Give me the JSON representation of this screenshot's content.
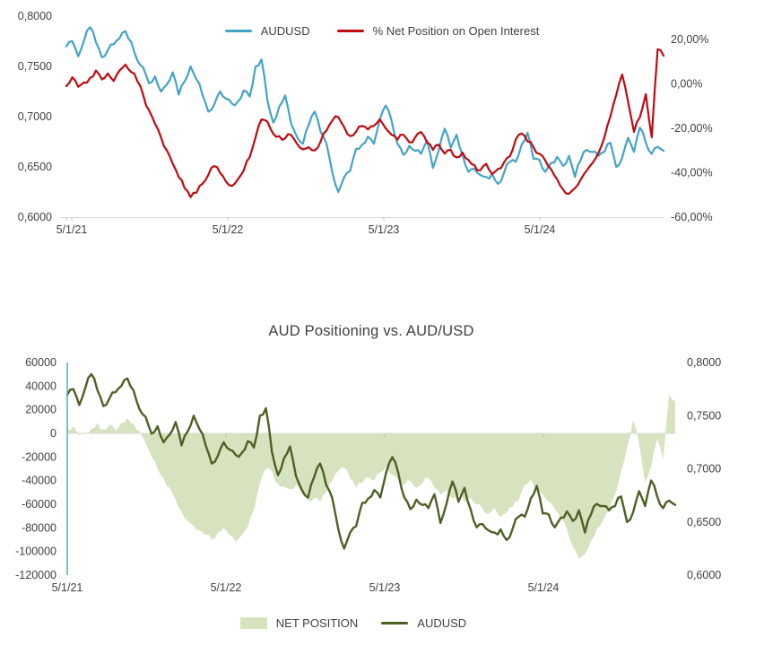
{
  "page": {
    "background": "#FFFFFF",
    "text_color": "#404040"
  },
  "top_chart": {
    "legend": [
      {
        "label": "AUDUSD",
        "color": "#44A3C6",
        "swatch": "line"
      },
      {
        "label": "% Net Position on Open Interest",
        "color": "#C00A12",
        "swatch": "line"
      }
    ]
  },
  "bottom_chart": {
    "title": "AUD Positioning vs. AUD/USD",
    "legend": [
      {
        "label": "NET POSITION",
        "color": "#D7E2BE",
        "swatch": "area"
      },
      {
        "label": "AUDUSD",
        "color": "#4E6024",
        "swatch": "line"
      }
    ]
  },
  "chart_data": [
    {
      "type": "line",
      "title": "",
      "x_tick_labels": [
        "5/1/21",
        "5/1/22",
        "5/1/23",
        "5/1/24"
      ],
      "x_span_years": 3.83,
      "grid": false,
      "legend_position": "top",
      "y_left": {
        "min": 0.6,
        "max": 0.8,
        "tick_values": [
          0.8,
          0.75,
          0.7,
          0.65,
          0.6
        ],
        "tick_labels": [
          "0,8000",
          "0,7500",
          "0,7000",
          "0,6500",
          "0,6000"
        ]
      },
      "y_right": {
        "min": -60,
        "max": 30.5,
        "tick_values": [
          20,
          0,
          -20,
          -40,
          -60
        ],
        "tick_labels": [
          "20,00%",
          "0,00%",
          "-20,00%",
          "-40,00%",
          "-60,00%"
        ]
      },
      "series": [
        {
          "name": "AUDUSD",
          "type": "line",
          "axis": "left",
          "color": "#44A3C6",
          "values": [
            0.77,
            0.775,
            0.76,
            0.776,
            0.789,
            0.774,
            0.759,
            0.766,
            0.772,
            0.778,
            0.785,
            0.774,
            0.756,
            0.749,
            0.733,
            0.74,
            0.725,
            0.732,
            0.744,
            0.722,
            0.735,
            0.75,
            0.737,
            0.722,
            0.705,
            0.712,
            0.725,
            0.718,
            0.713,
            0.715,
            0.726,
            0.72,
            0.75,
            0.757,
            0.716,
            0.694,
            0.71,
            0.721,
            0.693,
            0.68,
            0.673,
            0.692,
            0.705,
            0.685,
            0.673,
            0.644,
            0.625,
            0.64,
            0.646,
            0.668,
            0.672,
            0.68,
            0.673,
            0.697,
            0.711,
            0.696,
            0.673,
            0.662,
            0.671,
            0.666,
            0.663,
            0.676,
            0.649,
            0.667,
            0.688,
            0.669,
            0.682,
            0.662,
            0.645,
            0.648,
            0.642,
            0.64,
            0.643,
            0.633,
            0.644,
            0.655,
            0.655,
            0.672,
            0.684,
            0.658,
            0.657,
            0.645,
            0.654,
            0.66,
            0.651,
            0.661,
            0.64,
            0.657,
            0.667,
            0.665,
            0.661,
            0.665,
            0.674,
            0.65,
            0.659,
            0.679,
            0.665,
            0.689,
            0.674,
            0.663,
            0.67,
            0.666
          ]
        },
        {
          "name": "% Net Position on Open Interest",
          "type": "line",
          "axis": "right",
          "color": "#C00A12",
          "values": [
            -1.0,
            3.0,
            -1.3,
            0.7,
            2.7,
            6.0,
            2.0,
            4.7,
            1.3,
            6.0,
            8.7,
            5.3,
            1.3,
            -5.0,
            -12.0,
            -18.0,
            -24.0,
            -30.0,
            -36.0,
            -42.0,
            -47.0,
            -51.0,
            -49.0,
            -45.0,
            -41.0,
            -37.0,
            -40.0,
            -44.0,
            -46.0,
            -43.0,
            -39.0,
            -33.0,
            -24.0,
            -16.0,
            -17.0,
            -22.5,
            -23.5,
            -24.5,
            -23.0,
            -27.0,
            -29.5,
            -28.5,
            -30.0,
            -26.0,
            -21.0,
            -16.5,
            -15.0,
            -19.5,
            -23.5,
            -21.5,
            -19.0,
            -20.5,
            -18.9,
            -16.0,
            -20.0,
            -22.9,
            -25.1,
            -22.9,
            -26.3,
            -24.0,
            -21.7,
            -26.3,
            -29.7,
            -27.4,
            -31.4,
            -29.7,
            -33.1,
            -30.9,
            -34.3,
            -36.6,
            -38.9,
            -36.0,
            -40.6,
            -38.3,
            -35.4,
            -32.6,
            -25.1,
            -22.3,
            -26.0,
            -28.5,
            -31.5,
            -34.5,
            -38.5,
            -43.0,
            -47.5,
            -49.5,
            -47.0,
            -43.0,
            -39.0,
            -35.5,
            -31.0,
            -24.0,
            -14.7,
            -5.0,
            4.2,
            -8.0,
            -21.6,
            -15.0,
            -4.6,
            -24.0,
            15.6,
            12.7
          ]
        }
      ]
    },
    {
      "type": "area+line",
      "title": "AUD Positioning vs. AUD/USD",
      "x_tick_labels": [
        "5/1/21",
        "5/1/22",
        "5/1/23",
        "5/1/24"
      ],
      "x_span_years": 3.83,
      "grid": "zero-line-only",
      "legend_position": "bottom",
      "y_left": {
        "min": -120000,
        "max": 60000,
        "tick_values": [
          60000,
          40000,
          20000,
          0,
          -20000,
          -40000,
          -60000,
          -80000,
          -100000,
          -120000
        ],
        "tick_labels": [
          "60000",
          "40000",
          "20000",
          "0",
          "-20000",
          "-40000",
          "-60000",
          "-80000",
          "-100000",
          "-120000"
        ]
      },
      "y_right": {
        "min": 0.6,
        "max": 0.8,
        "tick_values": [
          0.8,
          0.75,
          0.7,
          0.65,
          0.6
        ],
        "tick_labels": [
          "0,8000",
          "0,7500",
          "0,7000",
          "0,6500",
          "0,6000"
        ]
      },
      "series": [
        {
          "name": "NET POSITION",
          "type": "area",
          "axis": "left",
          "color": "#D7E2BE",
          "values": [
            3000,
            6000,
            -2000,
            1000,
            4000,
            9000,
            3000,
            7000,
            2000,
            9000,
            13000,
            8000,
            2000,
            -8000,
            -20000,
            -30000,
            -38000,
            -46000,
            -56000,
            -66000,
            -74000,
            -78000,
            -82000,
            -86000,
            -90000,
            -84000,
            -80000,
            -86000,
            -92000,
            -86000,
            -79000,
            -65000,
            -42000,
            -30000,
            -32000,
            -43000,
            -45000,
            -47000,
            -44000,
            -52000,
            -57000,
            -55000,
            -58000,
            -50000,
            -40000,
            -32000,
            -29000,
            -38000,
            -46000,
            -42000,
            -37000,
            -40000,
            -33000,
            -28000,
            -35000,
            -40000,
            -44000,
            -40000,
            -46000,
            -42000,
            -38000,
            -46000,
            -52000,
            -48000,
            -55000,
            -52000,
            -58000,
            -54000,
            -60000,
            -64000,
            -68000,
            -63000,
            -71000,
            -67000,
            -62000,
            -57000,
            -44000,
            -39000,
            -48000,
            -52000,
            -58000,
            -64000,
            -72000,
            -81000,
            -96000,
            -106000,
            -102000,
            -91000,
            -81000,
            -74000,
            -66000,
            -52000,
            -32000,
            -12000,
            11000,
            -8000,
            -41000,
            -28000,
            -5000,
            -22000,
            33000,
            27000
          ]
        },
        {
          "name": "AUDUSD",
          "type": "line",
          "axis": "right",
          "color": "#4E6024",
          "values": [
            0.77,
            0.775,
            0.76,
            0.776,
            0.789,
            0.774,
            0.759,
            0.766,
            0.772,
            0.778,
            0.785,
            0.774,
            0.756,
            0.749,
            0.733,
            0.74,
            0.725,
            0.732,
            0.744,
            0.722,
            0.735,
            0.75,
            0.737,
            0.722,
            0.705,
            0.712,
            0.725,
            0.718,
            0.713,
            0.715,
            0.726,
            0.72,
            0.75,
            0.757,
            0.716,
            0.694,
            0.71,
            0.721,
            0.693,
            0.68,
            0.673,
            0.692,
            0.705,
            0.685,
            0.673,
            0.644,
            0.625,
            0.64,
            0.646,
            0.668,
            0.672,
            0.68,
            0.673,
            0.697,
            0.711,
            0.696,
            0.673,
            0.662,
            0.671,
            0.666,
            0.663,
            0.676,
            0.649,
            0.667,
            0.688,
            0.669,
            0.682,
            0.662,
            0.645,
            0.648,
            0.642,
            0.64,
            0.643,
            0.633,
            0.644,
            0.655,
            0.655,
            0.672,
            0.684,
            0.658,
            0.657,
            0.645,
            0.654,
            0.66,
            0.651,
            0.661,
            0.64,
            0.657,
            0.667,
            0.665,
            0.661,
            0.665,
            0.674,
            0.65,
            0.659,
            0.679,
            0.665,
            0.689,
            0.674,
            0.663,
            0.67,
            0.666
          ]
        }
      ]
    }
  ],
  "colors": {
    "axis_line": "#D9D9D9",
    "tick_mark": "#BFBFBF",
    "secondary_axis_line": "#4BACC6",
    "text": "#404040"
  }
}
